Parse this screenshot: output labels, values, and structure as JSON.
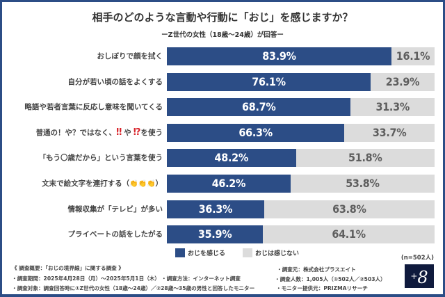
{
  "chart_data": {
    "type": "bar",
    "orientation": "horizontal-stacked-100",
    "title": "相手のどのような言動や行動に「おじ」を感じますか？",
    "subtitle": "ーZ世代の女性（18歳〜24歳）が回答ー",
    "categories": [
      "おしぼりで顔を拭く",
      "自分が若い頃の話をよくする",
      "略語や若者言葉に反応し意味を聞いてくる",
      "普通の！や？ではなく、‼や⁉を使う",
      "「もう〇歳だから」という言葉を使う",
      "文末で絵文字を連打する（👏👏👏）",
      "情報収集が「テレビ」が多い",
      "プライベートの話をしたがる"
    ],
    "series": [
      {
        "name": "おじを感じる",
        "color": "#2c4d86",
        "values": [
          83.9,
          76.1,
          68.7,
          66.3,
          48.2,
          46.2,
          36.3,
          35.9
        ]
      },
      {
        "name": "おじは感じない",
        "color": "#dcdcdc",
        "values": [
          16.1,
          23.9,
          31.3,
          33.7,
          51.8,
          53.8,
          63.8,
          64.1
        ]
      }
    ],
    "value_suffix": "%",
    "xlim": [
      0,
      100
    ],
    "grid": false,
    "legend_position": "bottom-left",
    "note": "(n=502人)"
  },
  "labels": {
    "row3_prefix": "普通の！や？ではなく、",
    "row3_ex1": "‼",
    "row3_mid": "や",
    "row3_ex2": "⁉",
    "row3_suffix": "を使う",
    "row5_prefix": "文末で絵文字を連打する（",
    "row5_emoji": "👏👏👏",
    "row5_suffix": "）"
  },
  "footer": {
    "overview": "《 調査概要：「おじの境界線」に関する調査 》",
    "period": "・調査期間：2025年4月28日（月）〜2025年5月1日（木）",
    "method": "・調査方法：インターネット調査",
    "target": "・調査対象：調査回答時に①Z世代の女性（18歳〜24歳）／②28歳〜35歳の男性と回答したモニター",
    "source": "・調査元：株式会社プラスエイト",
    "count": "・調査人数：1,005人（①502人／②503人）",
    "provider": "・モニター提供元：PRIZMAリサーチ"
  },
  "logo": {
    "plus": "+",
    "digit": "8"
  }
}
